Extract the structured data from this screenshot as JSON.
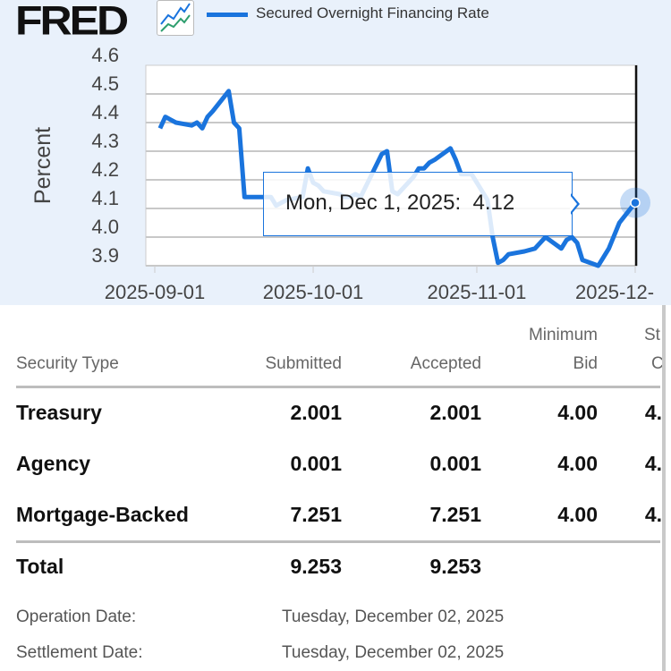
{
  "header": {
    "logo": "FRED",
    "legend_label": "Secured Overnight Financing Rate"
  },
  "chart_data": {
    "type": "line",
    "ylabel": "Percent",
    "ylim": [
      3.9,
      4.6
    ],
    "yticks": [
      "4.6",
      "4.5",
      "4.4",
      "4.3",
      "4.2",
      "4.1",
      "4.0",
      "3.9"
    ],
    "xticks": [
      "2025-09-01",
      "2025-10-01",
      "2025-11-01",
      "2025-12-"
    ],
    "xtick_dates": [
      "2025-09-01",
      "2025-10-01",
      "2025-11-01",
      "2025-12-01"
    ],
    "grid": true,
    "line_color": "#1a74dd",
    "series": [
      {
        "name": "Secured Overnight Financing Rate",
        "points": [
          [
            "2025-09-02",
            4.38
          ],
          [
            "2025-09-03",
            4.42
          ],
          [
            "2025-09-04",
            4.41
          ],
          [
            "2025-09-05",
            4.4
          ],
          [
            "2025-09-08",
            4.39
          ],
          [
            "2025-09-09",
            4.4
          ],
          [
            "2025-09-10",
            4.38
          ],
          [
            "2025-09-11",
            4.42
          ],
          [
            "2025-09-12",
            4.44
          ],
          [
            "2025-09-15",
            4.51
          ],
          [
            "2025-09-16",
            4.4
          ],
          [
            "2025-09-17",
            4.38
          ],
          [
            "2025-09-18",
            4.14
          ],
          [
            "2025-09-19",
            4.14
          ],
          [
            "2025-09-22",
            4.14
          ],
          [
            "2025-09-23",
            4.14
          ],
          [
            "2025-09-24",
            4.11
          ],
          [
            "2025-09-25",
            4.12
          ],
          [
            "2025-09-26",
            4.13
          ],
          [
            "2025-09-29",
            4.14
          ],
          [
            "2025-09-30",
            4.24
          ],
          [
            "2025-10-01",
            4.19
          ],
          [
            "2025-10-02",
            4.18
          ],
          [
            "2025-10-03",
            4.16
          ],
          [
            "2025-10-06",
            4.15
          ],
          [
            "2025-10-07",
            4.14
          ],
          [
            "2025-10-08",
            4.14
          ],
          [
            "2025-10-09",
            4.15
          ],
          [
            "2025-10-10",
            4.14
          ],
          [
            "2025-10-14",
            4.29
          ],
          [
            "2025-10-15",
            4.3
          ],
          [
            "2025-10-16",
            4.16
          ],
          [
            "2025-10-17",
            4.15
          ],
          [
            "2025-10-20",
            4.21
          ],
          [
            "2025-10-21",
            4.24
          ],
          [
            "2025-10-22",
            4.24
          ],
          [
            "2025-10-23",
            4.26
          ],
          [
            "2025-10-24",
            4.27
          ],
          [
            "2025-10-27",
            4.31
          ],
          [
            "2025-10-28",
            4.27
          ],
          [
            "2025-10-29",
            4.22
          ],
          [
            "2025-10-30",
            4.22
          ],
          [
            "2025-10-31",
            4.22
          ],
          [
            "2025-11-03",
            4.13
          ],
          [
            "2025-11-04",
            4.0
          ],
          [
            "2025-11-05",
            3.91
          ],
          [
            "2025-11-06",
            3.92
          ],
          [
            "2025-11-07",
            3.94
          ],
          [
            "2025-11-10",
            3.95
          ],
          [
            "2025-11-12",
            3.96
          ],
          [
            "2025-11-13",
            3.98
          ],
          [
            "2025-11-14",
            4.0
          ],
          [
            "2025-11-17",
            3.96
          ],
          [
            "2025-11-18",
            3.99
          ],
          [
            "2025-11-19",
            4.0
          ],
          [
            "2025-11-20",
            3.98
          ],
          [
            "2025-11-21",
            3.92
          ],
          [
            "2025-11-24",
            3.9
          ],
          [
            "2025-11-25",
            3.93
          ],
          [
            "2025-11-26",
            3.96
          ],
          [
            "2025-11-28",
            4.05
          ],
          [
            "2025-12-01",
            4.12
          ]
        ]
      }
    ],
    "tooltip": {
      "date_label": "Mon, Dec 1, 2025:",
      "value": "4.12",
      "date": "2025-12-01"
    }
  },
  "table": {
    "headers": {
      "security_type": "Security Type",
      "submitted": "Submitted",
      "accepted": "Accepted",
      "minimum_bid_line1": "Minimum",
      "minimum_bid_line2": "Bid",
      "cut_line1": "St",
      "cut_line2": "C"
    },
    "rows": [
      {
        "type": "Treasury",
        "submitted": "2.001",
        "accepted": "2.001",
        "min_bid": "4.00",
        "cut": "4."
      },
      {
        "type": "Agency",
        "submitted": "0.001",
        "accepted": "0.001",
        "min_bid": "4.00",
        "cut": "4."
      },
      {
        "type": "Mortgage-Backed",
        "submitted": "7.251",
        "accepted": "7.251",
        "min_bid": "4.00",
        "cut": "4."
      }
    ],
    "total": {
      "label": "Total",
      "submitted": "9.253",
      "accepted": "9.253"
    },
    "operation_date_label": "Operation Date:",
    "operation_date": "Tuesday, December 02, 2025",
    "settlement_date_label": "Settlement Date:",
    "settlement_date": "Tuesday, December 02, 2025"
  }
}
